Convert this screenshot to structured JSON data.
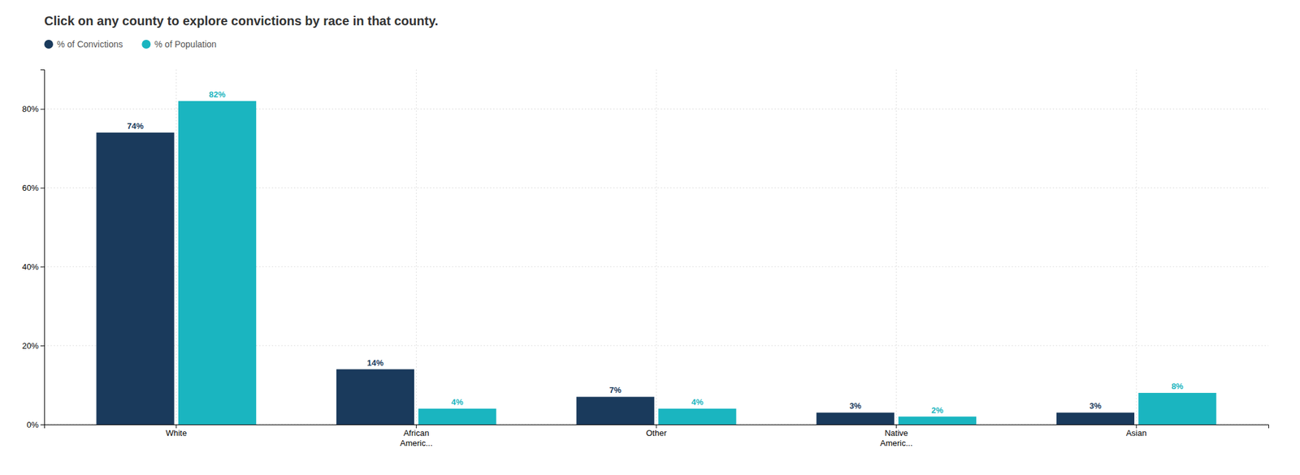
{
  "chart_data": {
    "type": "bar",
    "title": "Click on any county to explore convictions by race in that county.",
    "categories": [
      "White",
      "African\nAmeric...",
      "Other",
      "Native\nAmeric...",
      "Asian"
    ],
    "series": [
      {
        "name": "% of Convictions",
        "color": "#1a3a5c",
        "values": [
          74,
          14,
          7,
          3,
          3
        ],
        "value_labels": [
          "74%",
          "14%",
          "7%",
          "3%",
          "3%"
        ]
      },
      {
        "name": "% of Population",
        "color": "#1ab5c0",
        "values": [
          82,
          4,
          4,
          2,
          8
        ],
        "value_labels": [
          "82%",
          "4%",
          "4%",
          "2%",
          "8%"
        ]
      }
    ],
    "ylim": [
      0,
      90
    ],
    "yticks": [
      {
        "value": 0,
        "label": "0%"
      },
      {
        "value": 20,
        "label": "20%"
      },
      {
        "value": 40,
        "label": "40%"
      },
      {
        "value": 60,
        "label": "60%"
      },
      {
        "value": 80,
        "label": "80%"
      }
    ],
    "grid": true,
    "legend": "upper left",
    "data_labels": true
  }
}
